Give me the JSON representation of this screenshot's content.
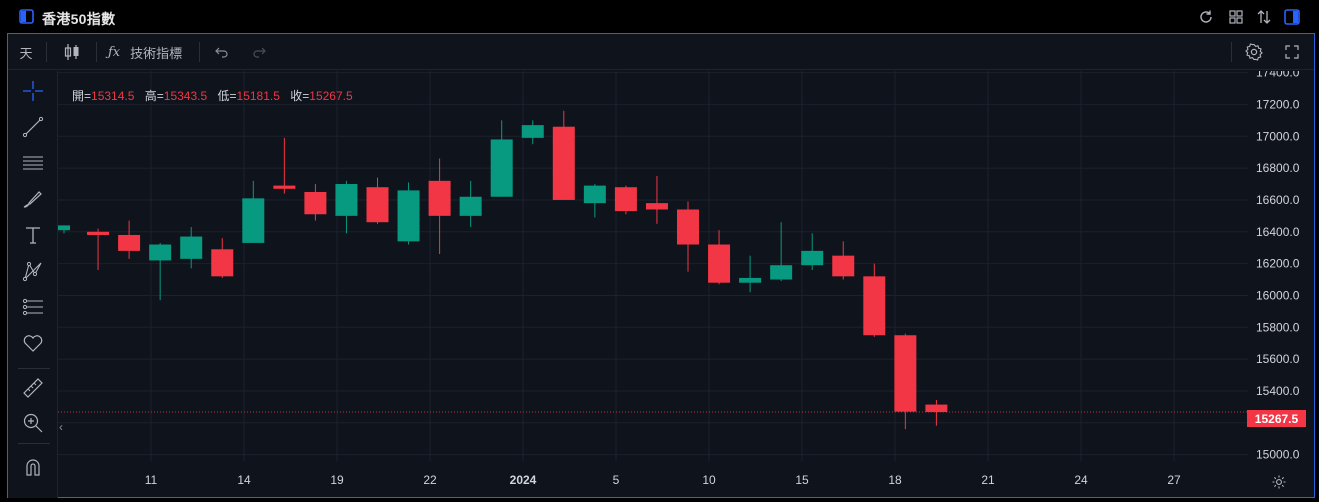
{
  "window": {
    "title": "香港50指數"
  },
  "toolbar": {
    "interval_label": "天",
    "indicators_label": "技術指標"
  },
  "ohlc": {
    "open_label": "開=",
    "open": "15314.5",
    "high_label": "高=",
    "high": "15343.5",
    "low_label": "低=",
    "low": "15181.5",
    "close_label": "收=",
    "close": "15267.5"
  },
  "last_price": "15267.5",
  "colors": {
    "up": "#089981",
    "down": "#f23645",
    "accent": "#2962ff",
    "background": "#0f131b"
  },
  "sidebar_icons": [
    "crosshair-icon",
    "trend-line-icon",
    "horizontal-lines-icon",
    "brush-icon",
    "text-icon",
    "pattern-icon",
    "measure-lines-icon",
    "heart-icon",
    "ruler-icon",
    "zoom-in-icon",
    "magnet-icon"
  ],
  "chart_data": {
    "type": "candlestick",
    "y_ticks": [
      "17400.0",
      "17200.0",
      "17000.0",
      "16800.0",
      "16600.0",
      "16400.0",
      "16200.0",
      "16000.0",
      "15800.0",
      "15600.0",
      "15400.0",
      "15200.0",
      "15000.0"
    ],
    "ylim": [
      14960,
      17410
    ],
    "x_ticks": [
      "11",
      "14",
      "19",
      "22",
      "2024",
      "5",
      "10",
      "15",
      "18",
      "21",
      "24",
      "27"
    ],
    "candles": [
      {
        "o": 16410,
        "h": 16440,
        "l": 16390,
        "c": 16440
      },
      {
        "o": 16400,
        "h": 16420,
        "l": 16160,
        "c": 16380
      },
      {
        "o": 16380,
        "h": 16470,
        "l": 16230,
        "c": 16280
      },
      {
        "o": 16220,
        "h": 16330,
        "l": 15970,
        "c": 16320
      },
      {
        "o": 16230,
        "h": 16430,
        "l": 16170,
        "c": 16370
      },
      {
        "o": 16290,
        "h": 16360,
        "l": 16110,
        "c": 16120
      },
      {
        "o": 16330,
        "h": 16720,
        "l": 16330,
        "c": 16610
      },
      {
        "o": 16690,
        "h": 16990,
        "l": 16640,
        "c": 16670
      },
      {
        "o": 16650,
        "h": 16700,
        "l": 16470,
        "c": 16510
      },
      {
        "o": 16500,
        "h": 16720,
        "l": 16390,
        "c": 16700
      },
      {
        "o": 16680,
        "h": 16740,
        "l": 16450,
        "c": 16460
      },
      {
        "o": 16340,
        "h": 16710,
        "l": 16320,
        "c": 16660
      },
      {
        "o": 16720,
        "h": 16860,
        "l": 16260,
        "c": 16500
      },
      {
        "o": 16500,
        "h": 16720,
        "l": 16430,
        "c": 16620
      },
      {
        "o": 16620,
        "h": 17100,
        "l": 16620,
        "c": 16980
      },
      {
        "o": 16990,
        "h": 17100,
        "l": 16950,
        "c": 17070
      },
      {
        "o": 17060,
        "h": 17160,
        "l": 16600,
        "c": 16600
      },
      {
        "o": 16580,
        "h": 16700,
        "l": 16490,
        "c": 16690
      },
      {
        "o": 16680,
        "h": 16690,
        "l": 16510,
        "c": 16530
      },
      {
        "o": 16580,
        "h": 16750,
        "l": 16450,
        "c": 16540
      },
      {
        "o": 16540,
        "h": 16590,
        "l": 16150,
        "c": 16320
      },
      {
        "o": 16320,
        "h": 16410,
        "l": 16070,
        "c": 16080
      },
      {
        "o": 16080,
        "h": 16250,
        "l": 16020,
        "c": 16110
      },
      {
        "o": 16100,
        "h": 16460,
        "l": 16090,
        "c": 16190
      },
      {
        "o": 16190,
        "h": 16390,
        "l": 16160,
        "c": 16280
      },
      {
        "o": 16250,
        "h": 16340,
        "l": 16100,
        "c": 16120
      },
      {
        "o": 16120,
        "h": 16200,
        "l": 15740,
        "c": 15750
      },
      {
        "o": 15750,
        "h": 15760,
        "l": 15160,
        "c": 15270
      },
      {
        "o": 15314.5,
        "h": 15343.5,
        "l": 15181.5,
        "c": 15267.5
      }
    ]
  }
}
